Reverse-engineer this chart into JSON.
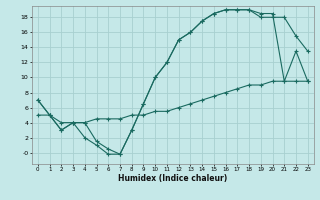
{
  "xlabel": "Humidex (Indice chaleur)",
  "bg_color": "#c5e8e8",
  "grid_color": "#a8d0d0",
  "line_color": "#1a6a60",
  "xlim": [
    -0.5,
    23.5
  ],
  "ylim": [
    -1.5,
    19.5
  ],
  "xticks": [
    0,
    1,
    2,
    3,
    4,
    5,
    6,
    7,
    8,
    9,
    10,
    11,
    12,
    13,
    14,
    15,
    16,
    17,
    18,
    19,
    20,
    21,
    22,
    23
  ],
  "yticks": [
    0,
    2,
    4,
    6,
    8,
    10,
    12,
    14,
    16,
    18
  ],
  "ytick_labels": [
    "-0",
    "2",
    "4",
    "6",
    "8",
    "10",
    "12",
    "14",
    "16",
    "18"
  ],
  "curve1_x": [
    0,
    1,
    2,
    3,
    4,
    5,
    6,
    7,
    8,
    9,
    10,
    11,
    12,
    13,
    14,
    15,
    16,
    17,
    18,
    19,
    20,
    21,
    22,
    23
  ],
  "curve1_y": [
    7.0,
    5.0,
    3.0,
    4.0,
    2.0,
    1.0,
    -0.2,
    -0.2,
    3.0,
    6.5,
    10.0,
    12.0,
    15.0,
    16.0,
    17.5,
    18.5,
    19.0,
    19.0,
    19.0,
    18.5,
    18.5,
    9.5,
    13.5,
    9.5
  ],
  "curve2_x": [
    0,
    1,
    2,
    3,
    4,
    5,
    6,
    7,
    8,
    9,
    10,
    11,
    12,
    13,
    14,
    15,
    16,
    17,
    18,
    19,
    20,
    21,
    22,
    23
  ],
  "curve2_y": [
    7.0,
    5.0,
    3.0,
    4.0,
    4.0,
    1.5,
    0.5,
    -0.2,
    3.0,
    6.5,
    10.0,
    12.0,
    15.0,
    16.0,
    17.5,
    18.5,
    19.0,
    19.0,
    19.0,
    18.0,
    18.0,
    18.0,
    15.5,
    13.5
  ],
  "curve3_x": [
    0,
    1,
    2,
    3,
    4,
    5,
    6,
    7,
    8,
    9,
    10,
    11,
    12,
    13,
    14,
    15,
    16,
    17,
    18,
    19,
    20,
    21,
    22,
    23
  ],
  "curve3_y": [
    5.0,
    5.0,
    4.0,
    4.0,
    4.0,
    4.5,
    4.5,
    4.5,
    5.0,
    5.0,
    5.5,
    5.5,
    6.0,
    6.5,
    7.0,
    7.5,
    8.0,
    8.5,
    9.0,
    9.0,
    9.5,
    9.5,
    9.5,
    9.5
  ]
}
